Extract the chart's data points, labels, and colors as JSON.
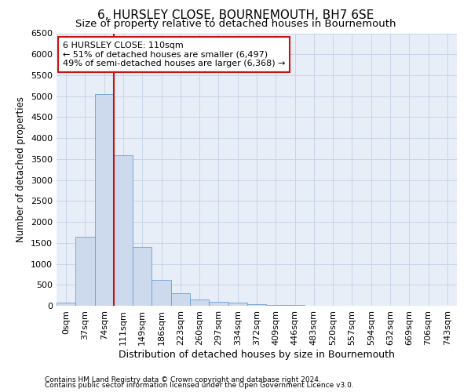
{
  "title": "6, HURSLEY CLOSE, BOURNEMOUTH, BH7 6SE",
  "subtitle": "Size of property relative to detached houses in Bournemouth",
  "xlabel": "Distribution of detached houses by size in Bournemouth",
  "ylabel": "Number of detached properties",
  "footnote1": "Contains HM Land Registry data © Crown copyright and database right 2024.",
  "footnote2": "Contains public sector information licensed under the Open Government Licence v3.0.",
  "categories": [
    "0sqm",
    "37sqm",
    "74sqm",
    "111sqm",
    "149sqm",
    "186sqm",
    "223sqm",
    "260sqm",
    "297sqm",
    "334sqm",
    "372sqm",
    "409sqm",
    "446sqm",
    "483sqm",
    "520sqm",
    "557sqm",
    "594sqm",
    "632sqm",
    "669sqm",
    "706sqm",
    "743sqm"
  ],
  "values": [
    75,
    1650,
    5050,
    3600,
    1400,
    620,
    300,
    150,
    100,
    70,
    40,
    10,
    10,
    0,
    0,
    0,
    0,
    0,
    0,
    0,
    0
  ],
  "bar_color": "#cdd9ed",
  "bar_edge_color": "#6b9fd4",
  "grid_color": "#c8d4e8",
  "vline_color": "#cc1111",
  "annotation_text": "6 HURSLEY CLOSE: 110sqm\n← 51% of detached houses are smaller (6,497)\n49% of semi-detached houses are larger (6,368) →",
  "annotation_box_facecolor": "#ffffff",
  "annotation_box_edgecolor": "#cc1111",
  "ylim": [
    0,
    6500
  ],
  "yticks": [
    0,
    500,
    1000,
    1500,
    2000,
    2500,
    3000,
    3500,
    4000,
    4500,
    5000,
    5500,
    6000,
    6500
  ],
  "title_fontsize": 11,
  "subtitle_fontsize": 9.5,
  "ylabel_fontsize": 8.5,
  "xlabel_fontsize": 9,
  "tick_fontsize": 8,
  "annotation_fontsize": 8,
  "footnote_fontsize": 6.5
}
